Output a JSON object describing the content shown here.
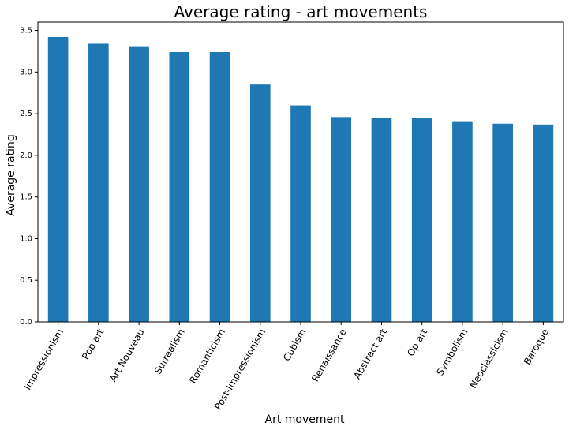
{
  "chart_data": {
    "type": "bar",
    "title": "Average rating - art movements",
    "xlabel": "Art movement",
    "ylabel": "Average rating",
    "categories": [
      "Impressionism",
      "Pop art",
      "Art Nouveau",
      "Surrealism",
      "Romanticism",
      "Post-Impressionism",
      "Cubism",
      "Renaissance",
      "Abstract art",
      "Op art",
      "Symbolism",
      "Neoclassicism",
      "Baroque"
    ],
    "values": [
      3.42,
      3.34,
      3.31,
      3.24,
      3.24,
      2.85,
      2.6,
      2.46,
      2.45,
      2.45,
      2.41,
      2.38,
      2.37
    ],
    "ylim": [
      0,
      3.6
    ],
    "yticks": [
      0.0,
      0.5,
      1.0,
      1.5,
      2.0,
      2.5,
      3.0,
      3.5
    ],
    "ytick_labels": [
      "0.0",
      "0.5",
      "1.0",
      "1.5",
      "2.0",
      "2.5",
      "3.0",
      "3.5"
    ],
    "grid": false,
    "legend": "none",
    "bar_color": "#1f77b4"
  }
}
